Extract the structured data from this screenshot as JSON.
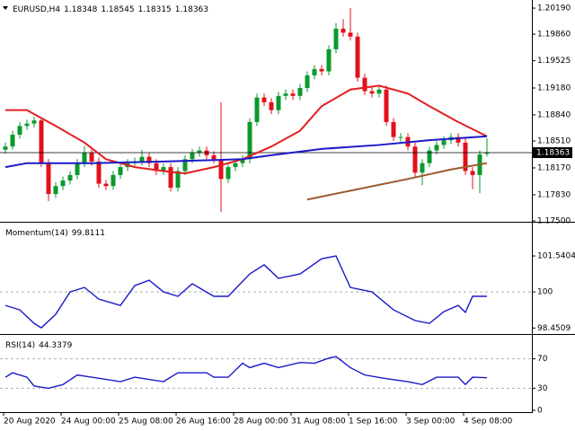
{
  "chart_data": [
    {
      "type": "candlestick",
      "title": "EURUSD,H4",
      "header_values": [
        1.18348,
        1.18545,
        1.18315,
        1.18363
      ],
      "last_price": 1.18363,
      "up_color": "#0b9a2c",
      "down_color": "#e3101c",
      "ylim": [
        1.175,
        1.2027
      ],
      "yticks": [
        {
          "value": 1.2019,
          "label": "1.20190"
        },
        {
          "value": 1.1986,
          "label": "1.19860"
        },
        {
          "value": 1.19525,
          "label": "1.19525"
        },
        {
          "value": 1.1918,
          "label": "1.19180"
        },
        {
          "value": 1.1884,
          "label": "1.18840"
        },
        {
          "value": 1.1851,
          "label": "1.18510"
        },
        {
          "value": 1.1817,
          "label": "1.18170"
        },
        {
          "value": 1.1783,
          "label": "1.17830"
        },
        {
          "value": 1.175,
          "label": "1.17500"
        }
      ],
      "ohlc": [
        [
          1.184,
          1.1849,
          1.1835,
          1.1844
        ],
        [
          1.1844,
          1.1864,
          1.184,
          1.1859
        ],
        [
          1.1859,
          1.1875,
          1.1854,
          1.187
        ],
        [
          1.187,
          1.1878,
          1.1865,
          1.1873
        ],
        [
          1.1873,
          1.1882,
          1.1868,
          1.1877
        ],
        [
          1.1877,
          1.188,
          1.1818,
          1.1823
        ],
        [
          1.1823,
          1.1828,
          1.1775,
          1.1784
        ],
        [
          1.1784,
          1.1799,
          1.1779,
          1.1794
        ],
        [
          1.1794,
          1.1806,
          1.1789,
          1.1801
        ],
        [
          1.1801,
          1.1813,
          1.1796,
          1.1808
        ],
        [
          1.1808,
          1.1828,
          1.1803,
          1.1823
        ],
        [
          1.1823,
          1.1845,
          1.1818,
          1.1836
        ],
        [
          1.1836,
          1.184,
          1.182,
          1.1825
        ],
        [
          1.1825,
          1.183,
          1.1792,
          1.1797
        ],
        [
          1.1797,
          1.1802,
          1.1789,
          1.1794
        ],
        [
          1.1794,
          1.1813,
          1.1789,
          1.1808
        ],
        [
          1.1808,
          1.1823,
          1.1803,
          1.1818
        ],
        [
          1.1818,
          1.1828,
          1.1813,
          1.1823
        ],
        [
          1.1823,
          1.183,
          1.1818,
          1.1825
        ],
        [
          1.1825,
          1.184,
          1.182,
          1.1831
        ],
        [
          1.1831,
          1.1836,
          1.1818,
          1.1823
        ],
        [
          1.1823,
          1.1828,
          1.1808,
          1.1813
        ],
        [
          1.1813,
          1.1823,
          1.1808,
          1.1818
        ],
        [
          1.1818,
          1.1823,
          1.1787,
          1.1792
        ],
        [
          1.1792,
          1.1818,
          1.1787,
          1.1813
        ],
        [
          1.1813,
          1.1833,
          1.1808,
          1.1828
        ],
        [
          1.1828,
          1.1841,
          1.1823,
          1.1836
        ],
        [
          1.1836,
          1.1844,
          1.1831,
          1.1839
        ],
        [
          1.1839,
          1.1844,
          1.1828,
          1.1833
        ],
        [
          1.1833,
          1.1838,
          1.1823,
          1.1828
        ],
        [
          1.1828,
          1.19,
          1.1761,
          1.1803
        ],
        [
          1.1803,
          1.1823,
          1.1798,
          1.1818
        ],
        [
          1.1818,
          1.1828,
          1.1813,
          1.1823
        ],
        [
          1.1823,
          1.1833,
          1.1818,
          1.1828
        ],
        [
          1.1828,
          1.188,
          1.1823,
          1.1875
        ],
        [
          1.1875,
          1.1911,
          1.187,
          1.1906
        ],
        [
          1.1906,
          1.1911,
          1.1895,
          1.19
        ],
        [
          1.19,
          1.1905,
          1.1885,
          1.189
        ],
        [
          1.189,
          1.1913,
          1.1885,
          1.1908
        ],
        [
          1.1908,
          1.1916,
          1.1903,
          1.1911
        ],
        [
          1.1911,
          1.1916,
          1.1903,
          1.1908
        ],
        [
          1.1908,
          1.1923,
          1.1903,
          1.1918
        ],
        [
          1.1918,
          1.1939,
          1.1913,
          1.1934
        ],
        [
          1.1934,
          1.1947,
          1.1929,
          1.1942
        ],
        [
          1.1942,
          1.1947,
          1.1934,
          1.1939
        ],
        [
          1.1939,
          1.1972,
          1.1934,
          1.1967
        ],
        [
          1.1967,
          1.2,
          1.1962,
          1.1993
        ],
        [
          1.1993,
          1.2005,
          1.1983,
          1.1988
        ],
        [
          1.1988,
          1.2019,
          1.1978,
          1.1983
        ],
        [
          1.1983,
          1.1988,
          1.1926,
          1.1931
        ],
        [
          1.1931,
          1.1936,
          1.1909,
          1.1914
        ],
        [
          1.1914,
          1.1919,
          1.1906,
          1.1911
        ],
        [
          1.1911,
          1.1921,
          1.1906,
          1.1916
        ],
        [
          1.1916,
          1.1921,
          1.187,
          1.1875
        ],
        [
          1.1875,
          1.188,
          1.1851,
          1.1856
        ],
        [
          1.1856,
          1.1861,
          1.185,
          1.1856
        ],
        [
          1.1856,
          1.1861,
          1.1839,
          1.1844
        ],
        [
          1.1844,
          1.1849,
          1.1806,
          1.1811
        ],
        [
          1.1811,
          1.1828,
          1.1795,
          1.1823
        ],
        [
          1.1823,
          1.1844,
          1.1818,
          1.1839
        ],
        [
          1.1839,
          1.1851,
          1.1834,
          1.1846
        ],
        [
          1.1846,
          1.1857,
          1.1841,
          1.1852
        ],
        [
          1.1852,
          1.1861,
          1.1847,
          1.1856
        ],
        [
          1.1856,
          1.1861,
          1.1844,
          1.1849
        ],
        [
          1.1849,
          1.1854,
          1.1808,
          1.1813
        ],
        [
          1.1813,
          1.1818,
          1.179,
          1.1808
        ],
        [
          1.1808,
          1.1839,
          1.1785,
          1.1834
        ],
        [
          1.18348,
          1.18545,
          1.18315,
          1.18363
        ]
      ],
      "series": [
        {
          "color": "#e41e1e",
          "x": [
            0,
            3,
            7,
            11,
            14,
            18,
            22,
            25,
            29,
            33,
            37,
            41,
            44,
            48,
            52,
            56,
            59,
            63,
            67
          ],
          "values": [
            1.189,
            1.189,
            1.187,
            1.1849,
            1.1828,
            1.1818,
            1.1813,
            1.181,
            1.1818,
            1.1828,
            1.1844,
            1.1864,
            1.1895,
            1.1916,
            1.1921,
            1.1911,
            1.1895,
            1.1875,
            1.1857
          ]
        },
        {
          "color": "#1a1ac8",
          "x": [
            0,
            3,
            12,
            22,
            33,
            37,
            44,
            52,
            59,
            67
          ],
          "values": [
            1.1818,
            1.1823,
            1.1823,
            1.1825,
            1.1828,
            1.1833,
            1.1841,
            1.1846,
            1.1852,
            1.1857
          ]
        },
        {
          "color": "#9c5a2e",
          "x": [
            42,
            49,
            56,
            62,
            67
          ],
          "values": [
            1.1777,
            1.179,
            1.1803,
            1.1815,
            1.1823
          ]
        }
      ]
    },
    {
      "type": "line",
      "title": "Momentum(14)",
      "current": 99.8111,
      "ylim": [
        98.27,
        102.89
      ],
      "yticks": [
        101.5404,
        100,
        98.4509
      ],
      "levels": [
        100
      ],
      "series": [
        {
          "color": "#1a1ac8",
          "x": [
            0,
            2,
            4,
            5,
            7,
            9,
            11,
            13,
            16,
            18,
            20,
            22,
            24,
            26,
            29,
            31,
            34,
            36,
            38,
            41,
            44,
            46,
            48,
            51,
            54,
            57,
            59,
            61,
            63,
            64,
            65,
            67
          ],
          "values": [
            99.42,
            99.23,
            98.65,
            98.46,
            99.04,
            100.0,
            100.19,
            99.69,
            99.42,
            100.27,
            100.5,
            100.0,
            99.81,
            100.35,
            99.81,
            99.81,
            100.77,
            101.16,
            100.58,
            100.77,
            101.42,
            101.54,
            100.19,
            100.0,
            99.23,
            98.77,
            98.65,
            99.15,
            99.42,
            99.12,
            99.81,
            99.81
          ]
        }
      ]
    },
    {
      "type": "line",
      "title": "RSI(14)",
      "current": 44.3379,
      "ylim": [
        0,
        100
      ],
      "yticks": [
        70,
        30,
        0
      ],
      "levels": [
        70,
        30
      ],
      "series": [
        {
          "color": "#1a1ac8",
          "x": [
            0,
            1,
            3,
            4,
            6,
            8,
            10,
            12,
            16,
            18,
            22,
            24,
            28,
            29,
            31,
            33,
            34,
            36,
            38,
            41,
            43,
            45,
            46,
            48,
            50,
            53,
            56,
            58,
            60,
            63,
            64,
            65,
            67
          ],
          "values": [
            45,
            51,
            45,
            33,
            30,
            35,
            48,
            45,
            39,
            45,
            39,
            51,
            51,
            45,
            45,
            64,
            58,
            64,
            58,
            65,
            64,
            71,
            73,
            58,
            48,
            43,
            39,
            35,
            45,
            45,
            35,
            45,
            44.34
          ]
        }
      ],
      "x_labels": [
        "20 Aug 2020",
        "24 Aug 00:00",
        "25 Aug 08:00",
        "26 Aug 16:00",
        "28 Aug 00:00",
        "31 Aug 08:00",
        "1 Sep 16:00",
        "3 Sep 00:00",
        "4 Sep 08:00"
      ]
    }
  ]
}
